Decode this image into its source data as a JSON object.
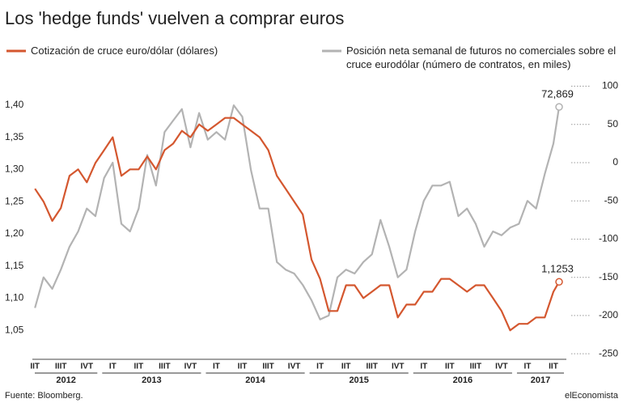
{
  "chart_data": {
    "type": "line",
    "title": "Los 'hedge funds' vuelven a comprar euros",
    "source": "Fuente: Bloomberg.",
    "brand": "elEconomista",
    "x": [
      2012.375,
      2012.458,
      2012.542,
      2012.625,
      2012.708,
      2012.792,
      2012.875,
      2012.958,
      2013.042,
      2013.125,
      2013.208,
      2013.292,
      2013.375,
      2013.458,
      2013.542,
      2013.625,
      2013.708,
      2013.792,
      2013.875,
      2013.958,
      2014.042,
      2014.125,
      2014.208,
      2014.292,
      2014.375,
      2014.458,
      2014.542,
      2014.625,
      2014.708,
      2014.792,
      2014.875,
      2014.958,
      2015.042,
      2015.125,
      2015.208,
      2015.292,
      2015.375,
      2015.458,
      2015.542,
      2015.625,
      2015.708,
      2015.792,
      2015.875,
      2015.958,
      2016.042,
      2016.125,
      2016.208,
      2016.292,
      2016.375,
      2016.458,
      2016.542,
      2016.625,
      2016.708,
      2016.792,
      2016.875,
      2016.958,
      2017.042,
      2017.125,
      2017.208,
      2017.292,
      2017.375,
      2017.43
    ],
    "series": [
      {
        "name": "Cotización de cruce euro/dólar (dólares)",
        "color": "#d4572f",
        "values": [
          1.27,
          1.25,
          1.22,
          1.24,
          1.29,
          1.3,
          1.28,
          1.31,
          1.33,
          1.35,
          1.29,
          1.3,
          1.3,
          1.32,
          1.3,
          1.33,
          1.34,
          1.36,
          1.35,
          1.37,
          1.36,
          1.37,
          1.38,
          1.38,
          1.37,
          1.36,
          1.35,
          1.33,
          1.29,
          1.27,
          1.25,
          1.23,
          1.16,
          1.13,
          1.08,
          1.08,
          1.12,
          1.12,
          1.1,
          1.11,
          1.12,
          1.12,
          1.07,
          1.09,
          1.09,
          1.11,
          1.11,
          1.13,
          1.13,
          1.12,
          1.11,
          1.12,
          1.12,
          1.1,
          1.08,
          1.05,
          1.06,
          1.06,
          1.07,
          1.07,
          1.11,
          1.1253
        ],
        "value_labels": [
          null,
          null,
          null,
          null,
          null,
          null,
          null,
          null,
          null,
          null,
          null,
          null,
          null,
          null,
          null,
          null,
          null,
          null,
          null,
          null,
          null,
          null,
          null,
          null,
          null,
          null,
          null,
          null,
          null,
          null,
          null,
          null,
          null,
          null,
          null,
          null,
          null,
          null,
          null,
          null,
          null,
          null,
          null,
          null,
          null,
          null,
          null,
          null,
          null,
          null,
          null,
          null,
          null,
          null,
          null,
          null,
          null,
          null,
          null,
          null,
          null,
          "1,1253"
        ]
      },
      {
        "name": "Posición neta semanal de futuros no comerciales sobre el cruce eurodólar (número de contratos, en miles)",
        "color": "#b3b3b3",
        "axis": "y2",
        "values": [
          -190,
          -150,
          -165,
          -140,
          -110,
          -90,
          -60,
          -70,
          -20,
          0,
          -80,
          -90,
          -60,
          10,
          -30,
          40,
          55,
          70,
          20,
          65,
          30,
          40,
          30,
          75,
          60,
          -10,
          -60,
          -60,
          -130,
          -140,
          -145,
          -160,
          -180,
          -205,
          -200,
          -150,
          -140,
          -145,
          -130,
          -120,
          -75,
          -110,
          -150,
          -140,
          -90,
          -50,
          -30,
          -30,
          -25,
          -70,
          -60,
          -80,
          -110,
          -90,
          -95,
          -85,
          -80,
          -50,
          -60,
          -15,
          25,
          72.869
        ],
        "value_labels": [
          null,
          null,
          null,
          null,
          null,
          null,
          null,
          null,
          null,
          null,
          null,
          null,
          null,
          null,
          null,
          null,
          null,
          null,
          null,
          null,
          null,
          null,
          null,
          null,
          null,
          null,
          null,
          null,
          null,
          null,
          null,
          null,
          null,
          null,
          null,
          null,
          null,
          null,
          null,
          null,
          null,
          null,
          null,
          null,
          null,
          null,
          null,
          null,
          null,
          null,
          null,
          null,
          null,
          null,
          null,
          null,
          null,
          null,
          null,
          null,
          null,
          "72,869"
        ]
      }
    ],
    "xlim": [
      2012.35,
      2017.5
    ],
    "xticks": [
      {
        "value": 2012.375,
        "label": "IIT"
      },
      {
        "value": 2012.625,
        "label": "IIIT"
      },
      {
        "value": 2012.875,
        "label": "IVT"
      },
      {
        "value": 2013.125,
        "label": "IT"
      },
      {
        "value": 2013.375,
        "label": "IIT"
      },
      {
        "value": 2013.625,
        "label": "IIIT"
      },
      {
        "value": 2013.875,
        "label": "IVT"
      },
      {
        "value": 2014.125,
        "label": "IT"
      },
      {
        "value": 2014.375,
        "label": "IIT"
      },
      {
        "value": 2014.625,
        "label": "IIIT"
      },
      {
        "value": 2014.875,
        "label": "IVT"
      },
      {
        "value": 2015.125,
        "label": "IT"
      },
      {
        "value": 2015.375,
        "label": "IIT"
      },
      {
        "value": 2015.625,
        "label": "IIIT"
      },
      {
        "value": 2015.875,
        "label": "IVT"
      },
      {
        "value": 2016.125,
        "label": "IT"
      },
      {
        "value": 2016.375,
        "label": "IIT"
      },
      {
        "value": 2016.625,
        "label": "IIIT"
      },
      {
        "value": 2016.875,
        "label": "IVT"
      },
      {
        "value": 2017.125,
        "label": "IT"
      },
      {
        "value": 2017.375,
        "label": "IIT"
      }
    ],
    "years": [
      2012,
      2013,
      2014,
      2015,
      2016,
      2017
    ],
    "ylim": [
      1.01,
      1.44
    ],
    "yticks": [
      {
        "value": 1.05,
        "label": "1,05"
      },
      {
        "value": 1.1,
        "label": "1,10"
      },
      {
        "value": 1.15,
        "label": "1,15"
      },
      {
        "value": 1.2,
        "label": "1,20"
      },
      {
        "value": 1.25,
        "label": "1,25"
      },
      {
        "value": 1.3,
        "label": "1,30"
      },
      {
        "value": 1.35,
        "label": "1,35"
      },
      {
        "value": 1.4,
        "label": "1,40"
      }
    ],
    "y2lim": [
      -253,
      109
    ],
    "y2ticks": [
      -250,
      -200,
      -150,
      -100,
      -50,
      0,
      50,
      100
    ]
  }
}
